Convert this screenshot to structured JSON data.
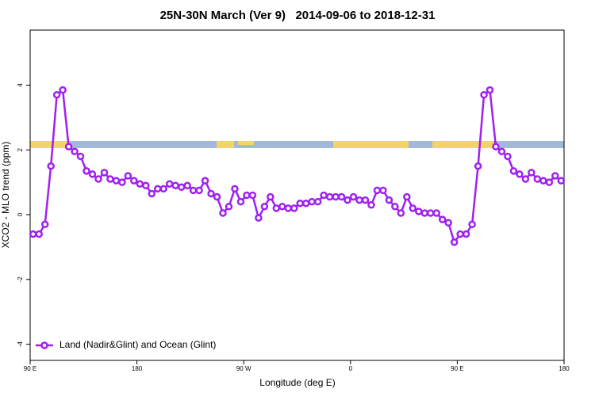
{
  "chart_data": {
    "type": "line",
    "title": "25N-30N March (Ver 9)   2014-09-06 to 2018-12-31",
    "x_label": "Longitude (deg E)",
    "y_label": "XCO2 - MLO trend (ppm)",
    "xlim": [
      90,
      540
    ],
    "xticks": [
      {
        "value": 90,
        "label": "90 E"
      },
      180,
      {
        "value": 270,
        "label": "90 W"
      },
      {
        "value": 360,
        "label": "0"
      },
      {
        "value": 450,
        "label": "90 E"
      },
      {
        "value": 540,
        "label": "180"
      }
    ],
    "ylim": [
      -4.5,
      5.7
    ],
    "yticks": [
      -4,
      -2,
      0,
      2,
      4
    ],
    "legend": "bottom-left",
    "x": [
      92.5,
      97.5,
      102.5,
      107.5,
      112.5,
      117.5,
      122.5,
      127.5,
      132.5,
      137.5,
      142.5,
      147.5,
      152.5,
      157.5,
      162.5,
      167.5,
      172.5,
      177.5,
      182.5,
      187.5,
      192.5,
      197.5,
      202.5,
      207.5,
      212.5,
      217.5,
      222.5,
      227.5,
      232.5,
      237.5,
      242.5,
      247.5,
      252.5,
      257.5,
      262.5,
      267.5,
      272.5,
      277.5,
      282.5,
      287.5,
      292.5,
      297.5,
      302.5,
      307.5,
      312.5,
      317.5,
      322.5,
      327.5,
      332.5,
      337.5,
      342.5,
      347.5,
      352.5,
      357.5,
      362.5,
      367.5,
      372.5,
      377.5,
      382.5,
      387.5,
      392.5,
      397.5,
      402.5,
      407.5,
      412.5,
      417.5,
      422.5,
      427.5,
      432.5,
      437.5,
      442.5,
      447.5,
      452.5,
      457.5,
      462.5,
      467.5,
      472.5,
      477.5,
      482.5,
      487.5,
      492.5,
      497.5,
      502.5,
      507.5,
      512.5,
      517.5,
      522.5,
      527.5,
      532.5,
      537.5
    ],
    "series": [
      {
        "name": "Land (Nadir&Glint) and Ocean (Glint)",
        "color": "#a020f0",
        "values": [
          -0.6,
          -0.6,
          -0.3,
          1.5,
          3.7,
          3.85,
          2.1,
          1.95,
          1.8,
          1.35,
          1.25,
          1.1,
          1.3,
          1.1,
          1.05,
          1.0,
          1.2,
          1.05,
          0.95,
          0.9,
          0.65,
          0.8,
          0.8,
          0.95,
          0.9,
          0.85,
          0.9,
          0.75,
          0.75,
          1.05,
          0.65,
          0.55,
          0.05,
          0.25,
          0.8,
          0.4,
          0.6,
          0.6,
          -0.1,
          0.25,
          0.55,
          0.2,
          0.25,
          0.2,
          0.2,
          0.35,
          0.35,
          0.4,
          0.4,
          0.6,
          0.55,
          0.55,
          0.55,
          0.45,
          0.55,
          0.45,
          0.45,
          0.3,
          0.75,
          0.75,
          0.45,
          0.25,
          0.05,
          0.55,
          0.2,
          0.1,
          0.05,
          0.05,
          0.05,
          -0.15,
          -0.25,
          -0.85,
          -0.6,
          -0.6,
          -0.3,
          1.5,
          3.7,
          3.85,
          2.1,
          1.95,
          1.8,
          1.35,
          1.25,
          1.1,
          1.3,
          1.1,
          1.05,
          1.0,
          1.2,
          1.05
        ]
      }
    ]
  }
}
